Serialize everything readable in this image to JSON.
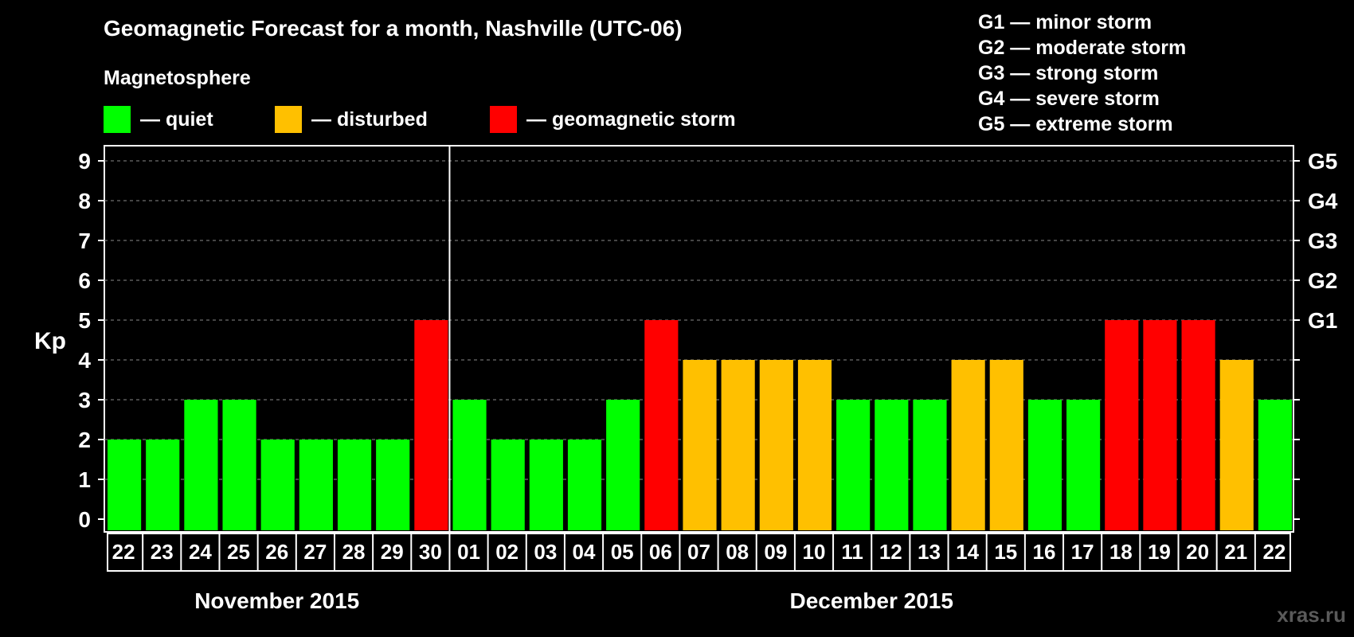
{
  "chart_data": {
    "type": "bar",
    "title": "Geomagnetic Forecast for a month, Nashville (UTC-06)",
    "ylabel": "Kp",
    "ylim": [
      0,
      9
    ],
    "yticks": [
      "0",
      "1",
      "2",
      "3",
      "4",
      "5",
      "6",
      "7",
      "8",
      "9"
    ],
    "grid": true,
    "right_axis_labels": [
      {
        "kp": 5,
        "label": "G1"
      },
      {
        "kp": 6,
        "label": "G2"
      },
      {
        "kp": 7,
        "label": "G3"
      },
      {
        "kp": 8,
        "label": "G4"
      },
      {
        "kp": 9,
        "label": "G5"
      }
    ],
    "categories": [
      "22",
      "23",
      "24",
      "25",
      "26",
      "27",
      "28",
      "29",
      "30",
      "01",
      "02",
      "03",
      "04",
      "05",
      "06",
      "07",
      "08",
      "09",
      "10",
      "11",
      "12",
      "13",
      "14",
      "15",
      "16",
      "17",
      "18",
      "19",
      "20",
      "21",
      "22"
    ],
    "values": [
      2,
      2,
      3,
      3,
      2,
      2,
      2,
      2,
      5,
      3,
      2,
      2,
      2,
      3,
      5,
      4,
      4,
      4,
      4,
      3,
      3,
      3,
      4,
      4,
      3,
      3,
      5,
      5,
      5,
      4,
      3
    ],
    "status": [
      "quiet",
      "quiet",
      "quiet",
      "quiet",
      "quiet",
      "quiet",
      "quiet",
      "quiet",
      "storm",
      "quiet",
      "quiet",
      "quiet",
      "quiet",
      "quiet",
      "storm",
      "disturbed",
      "disturbed",
      "disturbed",
      "disturbed",
      "quiet",
      "quiet",
      "quiet",
      "disturbed",
      "disturbed",
      "quiet",
      "quiet",
      "storm",
      "storm",
      "storm",
      "disturbed",
      "quiet"
    ],
    "months": [
      {
        "label": "November 2015",
        "start": 0,
        "count": 9
      },
      {
        "label": "December 2015",
        "start": 9,
        "count": 22
      }
    ]
  },
  "legend": {
    "heading": "Magnetosphere",
    "items": [
      {
        "key": "quiet",
        "label": "— quiet",
        "color": "#00ff00"
      },
      {
        "key": "disturbed",
        "label": "— disturbed",
        "color": "#ffc000"
      },
      {
        "key": "storm",
        "label": "— geomagnetic storm",
        "color": "#ff0000"
      }
    ]
  },
  "g_scale": [
    "G1 — minor storm",
    "G2 — moderate storm",
    "G3 — strong storm",
    "G4 — severe storm",
    "G5 — extreme storm"
  ],
  "watermark": "xras.ru"
}
